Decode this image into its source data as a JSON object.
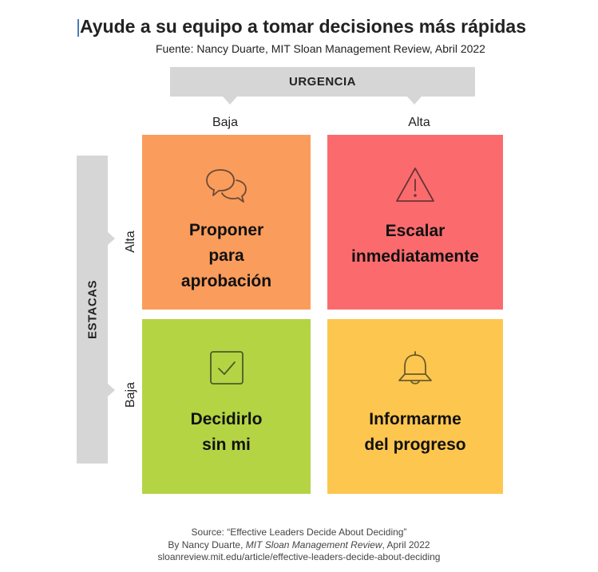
{
  "header": {
    "title": "Ayude a su equipo a tomar decisiones más rápidas",
    "subtitle": "Fuente: Nancy Duarte, MIT Sloan Management Review, Abril 2022"
  },
  "axes": {
    "urgency": {
      "label": "URGENCIA",
      "low": "Baja",
      "high": "Alta"
    },
    "stakes": {
      "label": "ESTACAS",
      "high": "Alta",
      "low": "Baja"
    }
  },
  "quadrants": {
    "high_stakes_low_urgency": {
      "lines": [
        "Proponer",
        "para",
        "aprobación"
      ],
      "icon": "chat-bubbles-icon",
      "color": "#fa9c5c"
    },
    "high_stakes_high_urgency": {
      "lines": [
        "Escalar",
        "inmediatamente"
      ],
      "icon": "warning-icon",
      "color": "#fb6b6e"
    },
    "low_stakes_low_urgency": {
      "lines": [
        "Decidirlo",
        "sin mi"
      ],
      "icon": "checkbox-icon",
      "color": "#b4d443"
    },
    "low_stakes_high_urgency": {
      "lines": [
        "Informarme",
        "del progreso"
      ],
      "icon": "bell-icon",
      "color": "#fdc64f"
    }
  },
  "source": {
    "line1": "Source: “Effective Leaders Decide About Deciding”",
    "line2_prefix": "By Nancy Duarte, ",
    "line2_journal": "MIT Sloan Management Review",
    "line2_suffix": ", April 2022",
    "line3": "sloanreview.mit.edu/article/effective-leaders-decide-about-deciding"
  }
}
